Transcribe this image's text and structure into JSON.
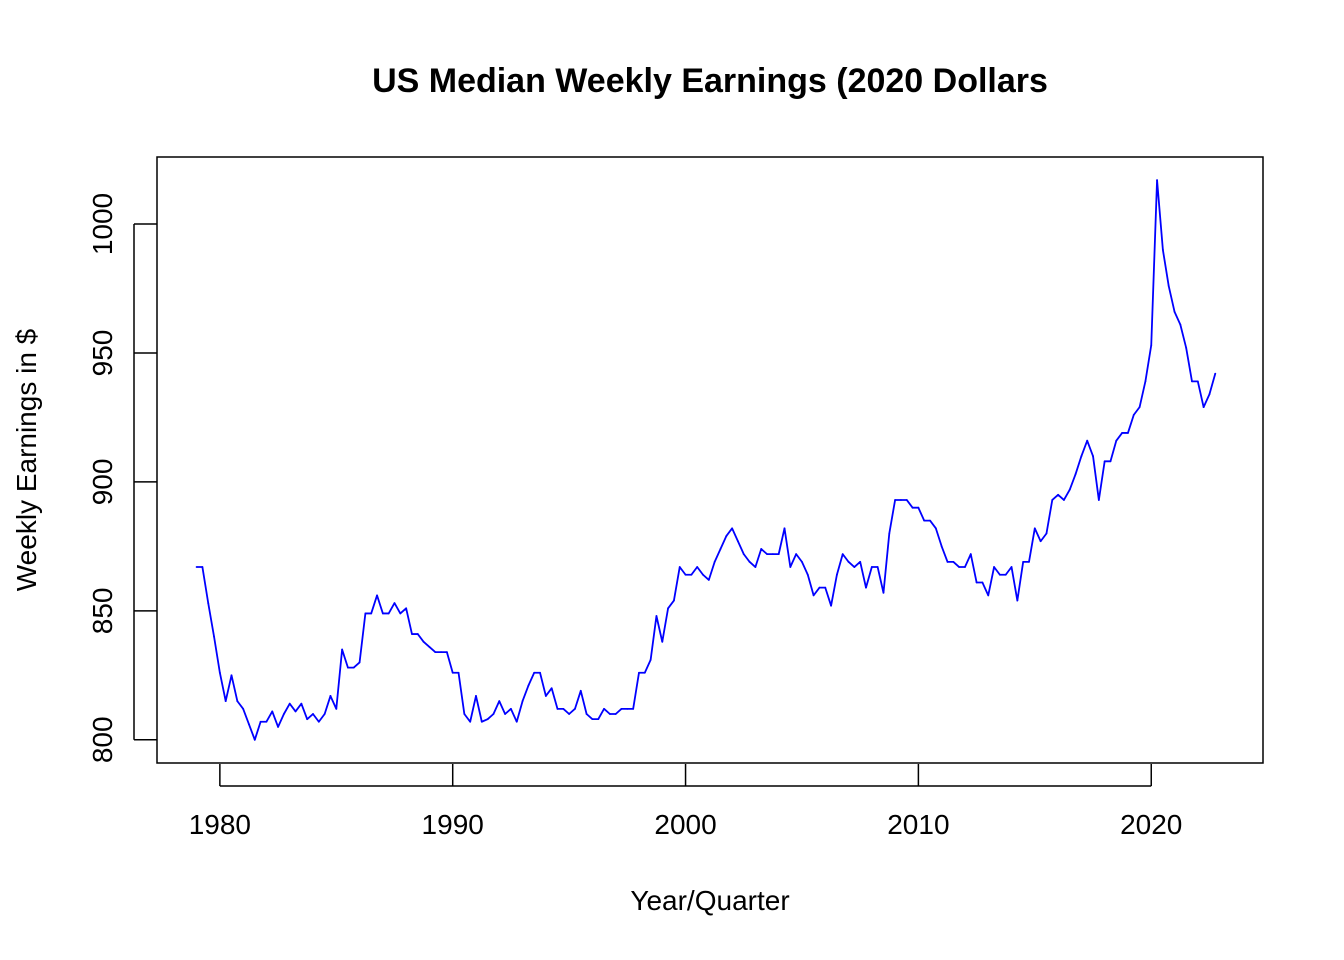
{
  "chart_data": {
    "type": "line",
    "title": "US Median Weekly Earnings (2020 Dollars",
    "xlabel": "Year/Quarter",
    "ylabel": "Weekly Earnings in $",
    "xlim": [
      1977.3,
      2024.8
    ],
    "ylim": [
      791,
      1026
    ],
    "x_ticks": [
      1980,
      1990,
      2000,
      2010,
      2020
    ],
    "y_ticks": [
      800,
      850,
      900,
      950,
      1000
    ],
    "grid": false,
    "legend": "none",
    "colors": {
      "line": "#0000ff",
      "axis": "#000000"
    },
    "series": [
      {
        "x_start": 1979.0,
        "x_step": 0.25,
        "values": [
          867,
          867,
          853,
          840,
          826,
          815,
          825,
          815,
          812,
          806,
          800,
          807,
          807,
          811,
          805,
          810,
          814,
          811,
          814,
          808,
          810,
          807,
          810,
          817,
          812,
          835,
          828,
          828,
          830,
          849,
          849,
          856,
          849,
          849,
          853,
          849,
          851,
          841,
          841,
          838,
          836,
          834,
          834,
          834,
          826,
          826,
          810,
          807,
          817,
          807,
          808,
          810,
          815,
          810,
          812,
          807,
          815,
          821,
          826,
          826,
          817,
          820,
          812,
          812,
          810,
          812,
          819,
          810,
          808,
          808,
          812,
          810,
          810,
          812,
          812,
          812,
          826,
          826,
          831,
          848,
          838,
          851,
          854,
          867,
          864,
          864,
          867,
          864,
          862,
          869,
          874,
          879,
          882,
          877,
          872,
          869,
          867,
          874,
          872,
          872,
          872,
          882,
          867,
          872,
          869,
          864,
          856,
          859,
          859,
          852,
          864,
          872,
          869,
          867,
          869,
          859,
          867,
          867,
          857,
          880,
          893,
          893,
          893,
          890,
          890,
          885,
          885,
          882,
          875,
          869,
          869,
          867,
          867,
          872,
          861,
          861,
          856,
          867,
          864,
          864,
          867,
          854,
          869,
          869,
          882,
          877,
          880,
          893,
          895,
          893,
          897,
          903,
          910,
          916,
          910,
          893,
          908,
          908,
          916,
          919,
          919,
          926,
          929,
          939,
          953,
          1017,
          990,
          976,
          966,
          961,
          952,
          939,
          939,
          929,
          934,
          942
        ]
      }
    ]
  }
}
